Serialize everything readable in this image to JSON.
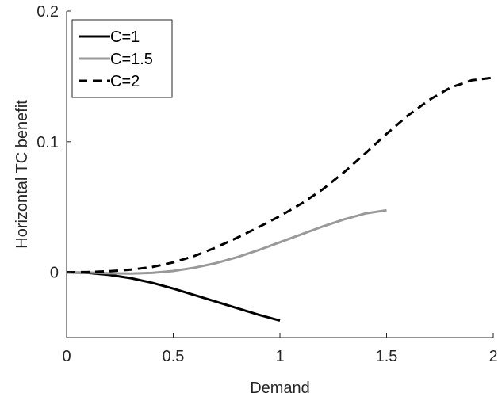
{
  "chart_data": {
    "type": "line",
    "title": "",
    "xlabel": "Demand",
    "ylabel": "Horizontal TC benefit",
    "xlim": [
      0,
      2
    ],
    "ylim": [
      -0.05,
      0.2
    ],
    "xticks": [
      0,
      0.5,
      1,
      1.5,
      2
    ],
    "xtick_labels": [
      "0",
      "0.5",
      "1",
      "1.5",
      "2"
    ],
    "yticks": [
      0,
      0.1,
      0.2
    ],
    "ytick_labels": [
      "0",
      "0.1",
      "0.2"
    ],
    "grid": false,
    "legend_position": "top-left",
    "series": [
      {
        "name": "C=1",
        "color": "#000000",
        "style": "solid",
        "x": [
          0,
          0.1,
          0.2,
          0.3,
          0.4,
          0.5,
          0.6,
          0.7,
          0.8,
          0.9,
          1.0
        ],
        "y": [
          0,
          -0.0005,
          -0.002,
          -0.0045,
          -0.008,
          -0.0125,
          -0.0175,
          -0.0225,
          -0.0275,
          -0.0325,
          -0.037
        ]
      },
      {
        "name": "C=1.5",
        "color": "#999999",
        "style": "solid",
        "x": [
          0,
          0.1,
          0.2,
          0.3,
          0.4,
          0.5,
          0.6,
          0.7,
          0.8,
          0.9,
          1.0,
          1.1,
          1.2,
          1.3,
          1.4,
          1.5
        ],
        "y": [
          0,
          -0.0002,
          -0.0008,
          -0.001,
          -0.0005,
          0.001,
          0.0035,
          0.007,
          0.0115,
          0.017,
          0.023,
          0.029,
          0.035,
          0.0405,
          0.045,
          0.0475
        ]
      },
      {
        "name": "C=2",
        "color": "#000000",
        "style": "dashed",
        "x": [
          0,
          0.1,
          0.2,
          0.3,
          0.4,
          0.5,
          0.6,
          0.7,
          0.8,
          0.9,
          1.0,
          1.1,
          1.2,
          1.3,
          1.4,
          1.5,
          1.6,
          1.7,
          1.8,
          1.9,
          2.0
        ],
        "y": [
          0,
          0.0002,
          0.0008,
          0.002,
          0.004,
          0.0075,
          0.0125,
          0.019,
          0.0265,
          0.0345,
          0.043,
          0.0525,
          0.0635,
          0.0765,
          0.091,
          0.106,
          0.12,
          0.132,
          0.1415,
          0.147,
          0.149
        ]
      }
    ]
  }
}
